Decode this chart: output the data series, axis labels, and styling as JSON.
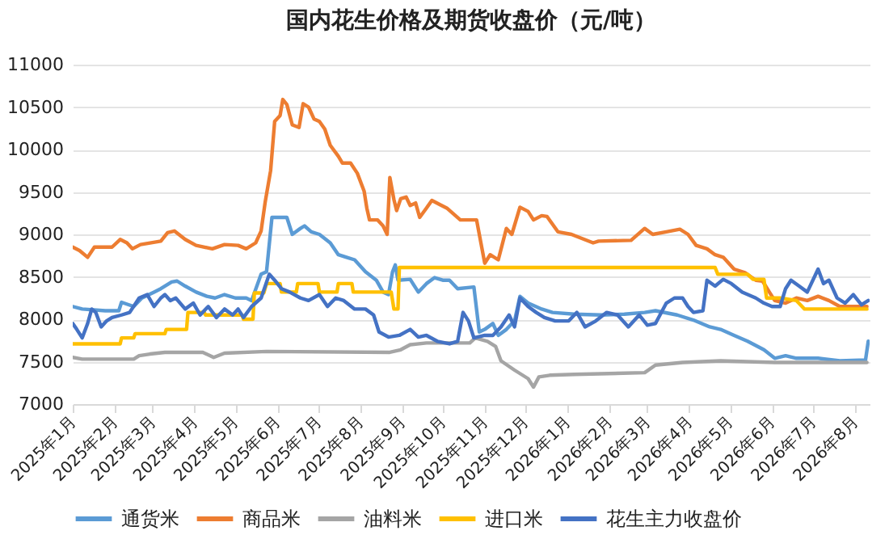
{
  "chart_data": {
    "type": "line",
    "title": "国内花生价格及期货收盘价（元/吨）",
    "xlim": [
      "2025-01-01",
      "2026-08-12"
    ],
    "xticks": [
      {
        "value": "2025-01-01",
        "label": "2025年1月"
      },
      {
        "value": "2025-02-01",
        "label": "2025年2月"
      },
      {
        "value": "2025-03-01",
        "label": "2025年3月"
      },
      {
        "value": "2025-04-01",
        "label": "2025年4月"
      },
      {
        "value": "2025-05-01",
        "label": "2025年5月"
      },
      {
        "value": "2025-06-01",
        "label": "2025年6月"
      },
      {
        "value": "2025-07-01",
        "label": "2025年7月"
      },
      {
        "value": "2025-08-01",
        "label": "2025年8月"
      },
      {
        "value": "2025-09-01",
        "label": "2025年9月"
      },
      {
        "value": "2025-10-01",
        "label": "2025年10月"
      },
      {
        "value": "2025-11-01",
        "label": "2025年11月"
      },
      {
        "value": "2025-12-01",
        "label": "2025年12月"
      },
      {
        "value": "2026-01-01",
        "label": "2026年1月"
      },
      {
        "value": "2026-02-01",
        "label": "2026年2月"
      },
      {
        "value": "2026-03-01",
        "label": "2026年3月"
      },
      {
        "value": "2026-04-01",
        "label": "2026年4月"
      },
      {
        "value": "2026-05-01",
        "label": "2026年5月"
      },
      {
        "value": "2026-06-01",
        "label": "2026年6月"
      },
      {
        "value": "2026-07-01",
        "label": "2026年7月"
      },
      {
        "value": "2026-08-01",
        "label": "2026年8月"
      }
    ],
    "ylim": [
      7000,
      11000
    ],
    "yticks": [
      7000,
      7500,
      8000,
      8500,
      9000,
      9500,
      10000,
      10500,
      11000
    ],
    "grid": "y",
    "legend": "bottom",
    "series": [
      {
        "name": "通货米",
        "color": "#5b9bd5",
        "x": [
          "2025-01-01",
          "2025-01-08",
          "2025-01-25",
          "2025-02-04",
          "2025-02-06",
          "2025-02-15",
          "2025-02-21",
          "2025-03-02",
          "2025-03-07",
          "2025-03-15",
          "2025-03-19",
          "2025-03-25",
          "2025-04-02",
          "2025-04-10",
          "2025-04-16",
          "2025-04-23",
          "2025-05-01",
          "2025-05-09",
          "2025-05-13",
          "2025-05-20",
          "2025-05-24",
          "2025-05-28",
          "2025-06-08",
          "2025-06-12",
          "2025-06-18",
          "2025-06-21",
          "2025-06-26",
          "2025-07-02",
          "2025-07-10",
          "2025-07-16",
          "2025-07-22",
          "2025-07-28",
          "2025-08-05",
          "2025-08-13",
          "2025-08-18",
          "2025-08-22",
          "2025-08-25",
          "2025-08-27",
          "2025-08-29",
          "2025-09-07",
          "2025-09-13",
          "2025-09-19",
          "2025-09-25",
          "2025-10-01",
          "2025-10-06",
          "2025-10-12",
          "2025-10-24",
          "2025-10-28",
          "2025-11-01",
          "2025-11-07",
          "2025-11-11",
          "2025-11-17",
          "2025-11-23",
          "2025-11-27",
          "2025-12-03",
          "2025-12-13",
          "2025-12-21",
          "2026-01-06",
          "2026-01-26",
          "2026-02-12",
          "2026-02-27",
          "2026-03-07",
          "2026-03-23",
          "2026-04-04",
          "2026-04-16",
          "2026-04-24",
          "2026-05-04",
          "2026-05-14",
          "2026-05-26",
          "2026-06-03",
          "2026-06-11",
          "2026-06-19",
          "2026-07-05",
          "2026-07-21",
          "2026-08-09",
          "2026-08-11"
        ],
        "values": [
          8150,
          8120,
          8100,
          8100,
          8200,
          8150,
          8250,
          8320,
          8360,
          8440,
          8450,
          8390,
          8320,
          8270,
          8250,
          8290,
          8250,
          8250,
          8220,
          8530,
          8560,
          9200,
          9200,
          9000,
          9070,
          9100,
          9030,
          9000,
          8900,
          8760,
          8730,
          8700,
          8560,
          8460,
          8320,
          8290,
          8560,
          8640,
          8460,
          8470,
          8320,
          8420,
          8490,
          8460,
          8460,
          8360,
          8380,
          7850,
          7880,
          7950,
          7810,
          7880,
          7980,
          8270,
          8190,
          8120,
          8080,
          8060,
          8050,
          8060,
          8080,
          8100,
          8050,
          7990,
          7910,
          7880,
          7810,
          7740,
          7640,
          7540,
          7570,
          7540,
          7540,
          7510,
          7520,
          7740
        ]
      },
      {
        "name": "商品米",
        "color": "#ed7d31",
        "x": [
          "2025-01-01",
          "2025-01-06",
          "2025-01-12",
          "2025-01-17",
          "2025-01-30",
          "2025-02-05",
          "2025-02-10",
          "2025-02-14",
          "2025-02-20",
          "2025-03-07",
          "2025-03-12",
          "2025-03-17",
          "2025-03-25",
          "2025-04-02",
          "2025-04-14",
          "2025-04-23",
          "2025-05-03",
          "2025-05-09",
          "2025-05-16",
          "2025-05-20",
          "2025-05-23",
          "2025-05-27",
          "2025-05-30",
          "2025-06-03",
          "2025-06-05",
          "2025-06-08",
          "2025-06-12",
          "2025-06-17",
          "2025-06-20",
          "2025-06-24",
          "2025-06-28",
          "2025-07-02",
          "2025-07-06",
          "2025-07-10",
          "2025-07-16",
          "2025-07-19",
          "2025-07-25",
          "2025-07-30",
          "2025-08-04",
          "2025-08-06",
          "2025-08-08",
          "2025-08-14",
          "2025-08-18",
          "2025-08-21",
          "2025-08-23",
          "2025-08-26",
          "2025-08-28",
          "2025-08-31",
          "2025-09-04",
          "2025-09-07",
          "2025-09-11",
          "2025-09-14",
          "2025-09-19",
          "2025-09-23",
          "2025-09-29",
          "2025-10-04",
          "2025-10-14",
          "2025-10-26",
          "2025-11-01",
          "2025-11-05",
          "2025-11-11",
          "2025-11-17",
          "2025-11-21",
          "2025-11-27",
          "2025-12-03",
          "2025-12-07",
          "2025-12-13",
          "2025-12-17",
          "2025-12-25",
          "2026-01-04",
          "2026-01-20",
          "2026-01-24",
          "2026-02-17",
          "2026-02-27",
          "2026-03-05",
          "2026-03-15",
          "2026-03-25",
          "2026-03-31",
          "2026-04-06",
          "2026-04-14",
          "2026-04-20",
          "2026-04-26",
          "2026-05-04",
          "2026-05-12",
          "2026-05-20",
          "2026-05-25",
          "2026-05-30",
          "2026-06-03",
          "2026-06-11",
          "2026-06-19",
          "2026-06-27",
          "2026-07-05",
          "2026-07-13",
          "2026-07-21",
          "2026-08-10"
        ],
        "values": [
          8850,
          8810,
          8730,
          8850,
          8850,
          8940,
          8900,
          8830,
          8880,
          8920,
          9020,
          9040,
          8940,
          8870,
          8830,
          8880,
          8870,
          8830,
          8900,
          9040,
          9380,
          9750,
          10330,
          10400,
          10590,
          10530,
          10290,
          10260,
          10540,
          10500,
          10360,
          10330,
          10240,
          10050,
          9920,
          9840,
          9840,
          9720,
          9510,
          9310,
          9170,
          9170,
          9100,
          9000,
          9670,
          9410,
          9280,
          9420,
          9440,
          9340,
          9370,
          9200,
          9310,
          9400,
          9350,
          9310,
          9170,
          9170,
          8660,
          8760,
          8700,
          9070,
          9000,
          9320,
          9270,
          9170,
          9220,
          9210,
          9030,
          9000,
          8900,
          8920,
          8930,
          9070,
          9000,
          9030,
          9060,
          9000,
          8870,
          8830,
          8760,
          8730,
          8590,
          8550,
          8460,
          8450,
          8320,
          8220,
          8190,
          8250,
          8220,
          8270,
          8220,
          8150,
          8150
        ]
      },
      {
        "name": "油料米",
        "color": "#a5a5a5",
        "x": [
          "2025-01-01",
          "2025-01-08",
          "2025-02-15",
          "2025-02-19",
          "2025-02-27",
          "2025-03-10",
          "2025-04-07",
          "2025-04-15",
          "2025-04-23",
          "2025-05-24",
          "2025-08-23",
          "2025-08-31",
          "2025-09-07",
          "2025-09-19",
          "2025-10-21",
          "2025-10-25",
          "2025-11-03",
          "2025-11-09",
          "2025-11-13",
          "2025-11-23",
          "2025-12-03",
          "2025-12-07",
          "2025-12-11",
          "2025-12-19",
          "2026-01-06",
          "2026-02-27",
          "2026-03-07",
          "2026-03-27",
          "2026-04-24",
          "2026-06-03",
          "2026-08-10"
        ],
        "values": [
          7550,
          7530,
          7530,
          7570,
          7590,
          7610,
          7610,
          7550,
          7600,
          7620,
          7610,
          7640,
          7700,
          7720,
          7720,
          7780,
          7740,
          7680,
          7510,
          7400,
          7300,
          7200,
          7320,
          7340,
          7350,
          7370,
          7460,
          7490,
          7510,
          7490,
          7490
        ]
      },
      {
        "name": "进口米",
        "color": "#ffc000",
        "x": [
          "2025-01-01",
          "2025-02-05",
          "2025-02-06",
          "2025-02-15",
          "2025-02-16",
          "2025-03-10",
          "2025-03-11",
          "2025-03-26",
          "2025-03-27",
          "2025-04-08",
          "2025-04-09",
          "2025-05-06",
          "2025-05-07",
          "2025-05-14",
          "2025-05-15",
          "2025-05-22",
          "2025-05-24",
          "2025-06-03",
          "2025-06-04",
          "2025-06-15",
          "2025-06-16",
          "2025-07-01",
          "2025-07-02",
          "2025-07-15",
          "2025-07-16",
          "2025-07-26",
          "2025-07-27",
          "2025-08-24",
          "2025-08-26",
          "2025-08-29",
          "2025-08-30",
          "2026-04-20",
          "2026-04-22",
          "2026-05-14",
          "2026-05-18",
          "2026-05-26",
          "2026-05-28",
          "2026-06-07",
          "2026-06-19",
          "2026-06-25",
          "2026-08-10"
        ],
        "values": [
          7710,
          7710,
          7780,
          7780,
          7830,
          7830,
          7880,
          7880,
          8080,
          8080,
          8050,
          8050,
          8000,
          8000,
          8310,
          8310,
          8420,
          8420,
          8320,
          8320,
          8420,
          8420,
          8320,
          8320,
          8420,
          8420,
          8320,
          8320,
          8120,
          8120,
          8610,
          8610,
          8530,
          8530,
          8470,
          8470,
          8250,
          8250,
          8220,
          8120,
          8120
        ]
      },
      {
        "name": "花生主力收盘价",
        "color": "#4472c4",
        "x": [
          "2025-01-01",
          "2025-01-04",
          "2025-01-08",
          "2025-01-12",
          "2025-01-15",
          "2025-01-18",
          "2025-01-22",
          "2025-01-26",
          "2025-01-30",
          "2025-02-06",
          "2025-02-12",
          "2025-02-19",
          "2025-02-25",
          "2025-03-02",
          "2025-03-07",
          "2025-03-10",
          "2025-03-14",
          "2025-03-18",
          "2025-03-25",
          "2025-03-31",
          "2025-04-05",
          "2025-04-11",
          "2025-04-17",
          "2025-04-23",
          "2025-04-29",
          "2025-05-03",
          "2025-05-07",
          "2025-05-13",
          "2025-05-20",
          "2025-05-26",
          "2025-05-30",
          "2025-06-04",
          "2025-06-10",
          "2025-06-18",
          "2025-06-24",
          "2025-07-02",
          "2025-07-08",
          "2025-07-14",
          "2025-07-20",
          "2025-07-28",
          "2025-08-05",
          "2025-08-11",
          "2025-08-15",
          "2025-08-22",
          "2025-08-30",
          "2025-09-07",
          "2025-09-13",
          "2025-09-19",
          "2025-09-27",
          "2025-10-06",
          "2025-10-12",
          "2025-10-16",
          "2025-10-20",
          "2025-10-24",
          "2025-11-01",
          "2025-11-07",
          "2025-11-13",
          "2025-11-19",
          "2025-11-23",
          "2025-11-27",
          "2025-12-03",
          "2025-12-09",
          "2025-12-15",
          "2025-12-23",
          "2026-01-02",
          "2026-01-08",
          "2026-01-14",
          "2026-01-22",
          "2026-01-30",
          "2026-02-07",
          "2026-02-15",
          "2026-02-23",
          "2026-03-01",
          "2026-03-07",
          "2026-03-15",
          "2026-03-21",
          "2026-03-27",
          "2026-03-31",
          "2026-04-04",
          "2026-04-11",
          "2026-04-14",
          "2026-04-20",
          "2026-04-26",
          "2026-05-02",
          "2026-05-10",
          "2026-05-20",
          "2026-05-26",
          "2026-06-01",
          "2026-06-07",
          "2026-06-11",
          "2026-06-15",
          "2026-06-21",
          "2026-06-27",
          "2026-07-05",
          "2026-07-09",
          "2026-07-13",
          "2026-07-19",
          "2026-07-25",
          "2026-07-31",
          "2026-08-06",
          "2026-08-11"
        ],
        "values": [
          7950,
          7880,
          7780,
          7950,
          8120,
          8080,
          7910,
          7980,
          8020,
          8050,
          8080,
          8250,
          8290,
          8150,
          8250,
          8290,
          8220,
          8250,
          8120,
          8190,
          8050,
          8150,
          8020,
          8120,
          8050,
          8120,
          8020,
          8150,
          8250,
          8530,
          8460,
          8360,
          8320,
          8250,
          8220,
          8290,
          8150,
          8250,
          8220,
          8120,
          8120,
          8050,
          7850,
          7790,
          7810,
          7880,
          7790,
          7810,
          7740,
          7710,
          7740,
          8080,
          7980,
          7780,
          7810,
          7810,
          7910,
          8050,
          7910,
          8250,
          8150,
          8080,
          8020,
          7980,
          7980,
          8080,
          7910,
          7980,
          8080,
          8050,
          7910,
          8050,
          7930,
          7950,
          8190,
          8250,
          8250,
          8150,
          8080,
          8100,
          8460,
          8390,
          8470,
          8420,
          8320,
          8250,
          8190,
          8150,
          8150,
          8360,
          8460,
          8390,
          8320,
          8590,
          8420,
          8460,
          8250,
          8190,
          8290,
          8170,
          8220
        ]
      }
    ]
  }
}
